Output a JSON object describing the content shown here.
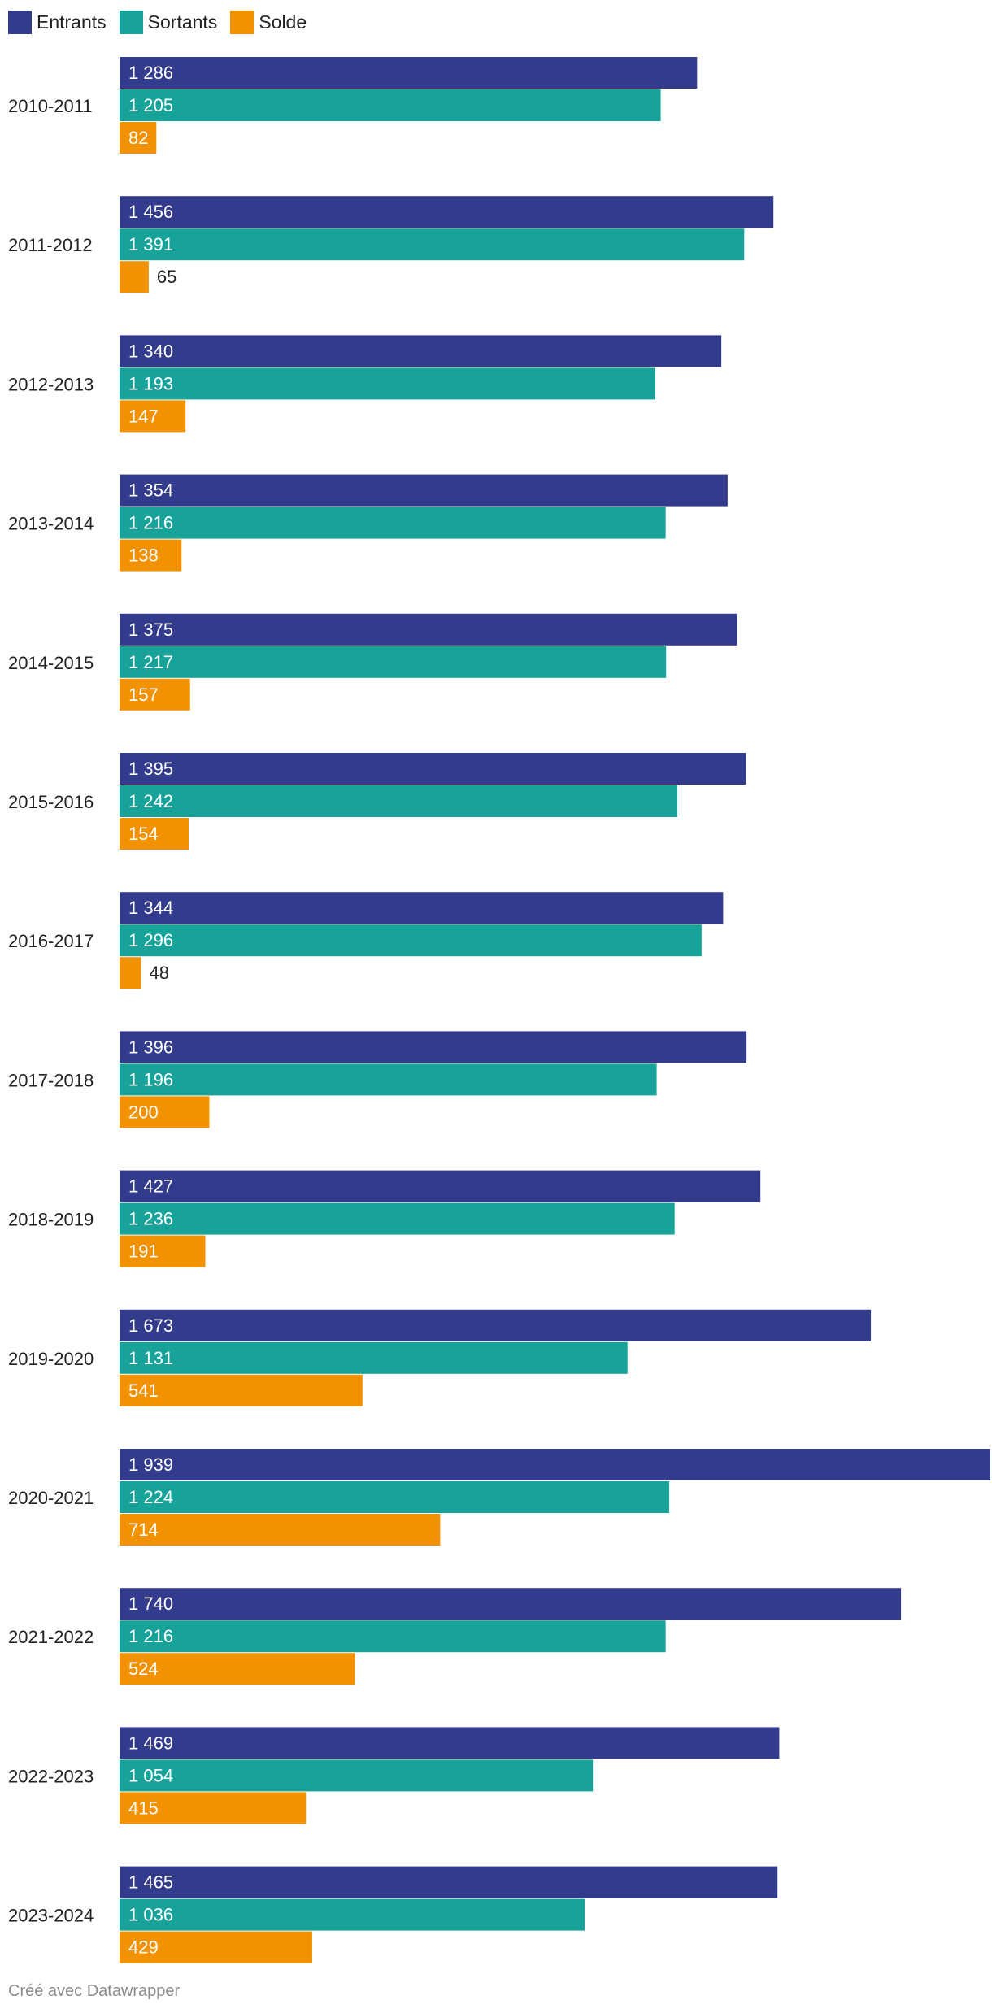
{
  "legend": [
    {
      "label": "Entrants",
      "color": "#323b8c"
    },
    {
      "label": "Sortants",
      "color": "#18a39a"
    },
    {
      "label": "Solde",
      "color": "#f39200"
    }
  ],
  "footer": "Créé avec Datawrapper",
  "chart_data": {
    "type": "bar",
    "orientation": "horizontal",
    "categories": [
      "2010-2011",
      "2011-2012",
      "2012-2013",
      "2013-2014",
      "2014-2015",
      "2015-2016",
      "2016-2017",
      "2017-2018",
      "2018-2019",
      "2019-2020",
      "2020-2021",
      "2021-2022",
      "2022-2023",
      "2023-2024"
    ],
    "series": [
      {
        "name": "Entrants",
        "color": "#323b8c",
        "values": [
          1286,
          1456,
          1340,
          1354,
          1375,
          1395,
          1344,
          1396,
          1427,
          1673,
          1939,
          1740,
          1469,
          1465
        ],
        "labels": [
          "1 286",
          "1 456",
          "1 340",
          "1 354",
          "1 375",
          "1 395",
          "1 344",
          "1 396",
          "1 427",
          "1 673",
          "1 939",
          "1 740",
          "1 469",
          "1 465"
        ]
      },
      {
        "name": "Sortants",
        "color": "#18a39a",
        "values": [
          1205,
          1391,
          1193,
          1216,
          1217,
          1242,
          1296,
          1196,
          1236,
          1131,
          1224,
          1216,
          1054,
          1036
        ],
        "labels": [
          "1 205",
          "1 391",
          "1 193",
          "1 216",
          "1 217",
          "1 242",
          "1 296",
          "1 196",
          "1 236",
          "1 131",
          "1 224",
          "1 216",
          "1 054",
          "1 036"
        ]
      },
      {
        "name": "Solde",
        "color": "#f39200",
        "values": [
          82,
          65,
          147,
          138,
          157,
          154,
          48,
          200,
          191,
          541,
          714,
          524,
          415,
          429
        ],
        "labels": [
          "82",
          "65",
          "147",
          "138",
          "157",
          "154",
          "48",
          "200",
          "191",
          "541",
          "714",
          "524",
          "415",
          "429"
        ]
      }
    ],
    "xlim": [
      0,
      1939
    ],
    "grid": false,
    "legend_position": "top-left"
  }
}
